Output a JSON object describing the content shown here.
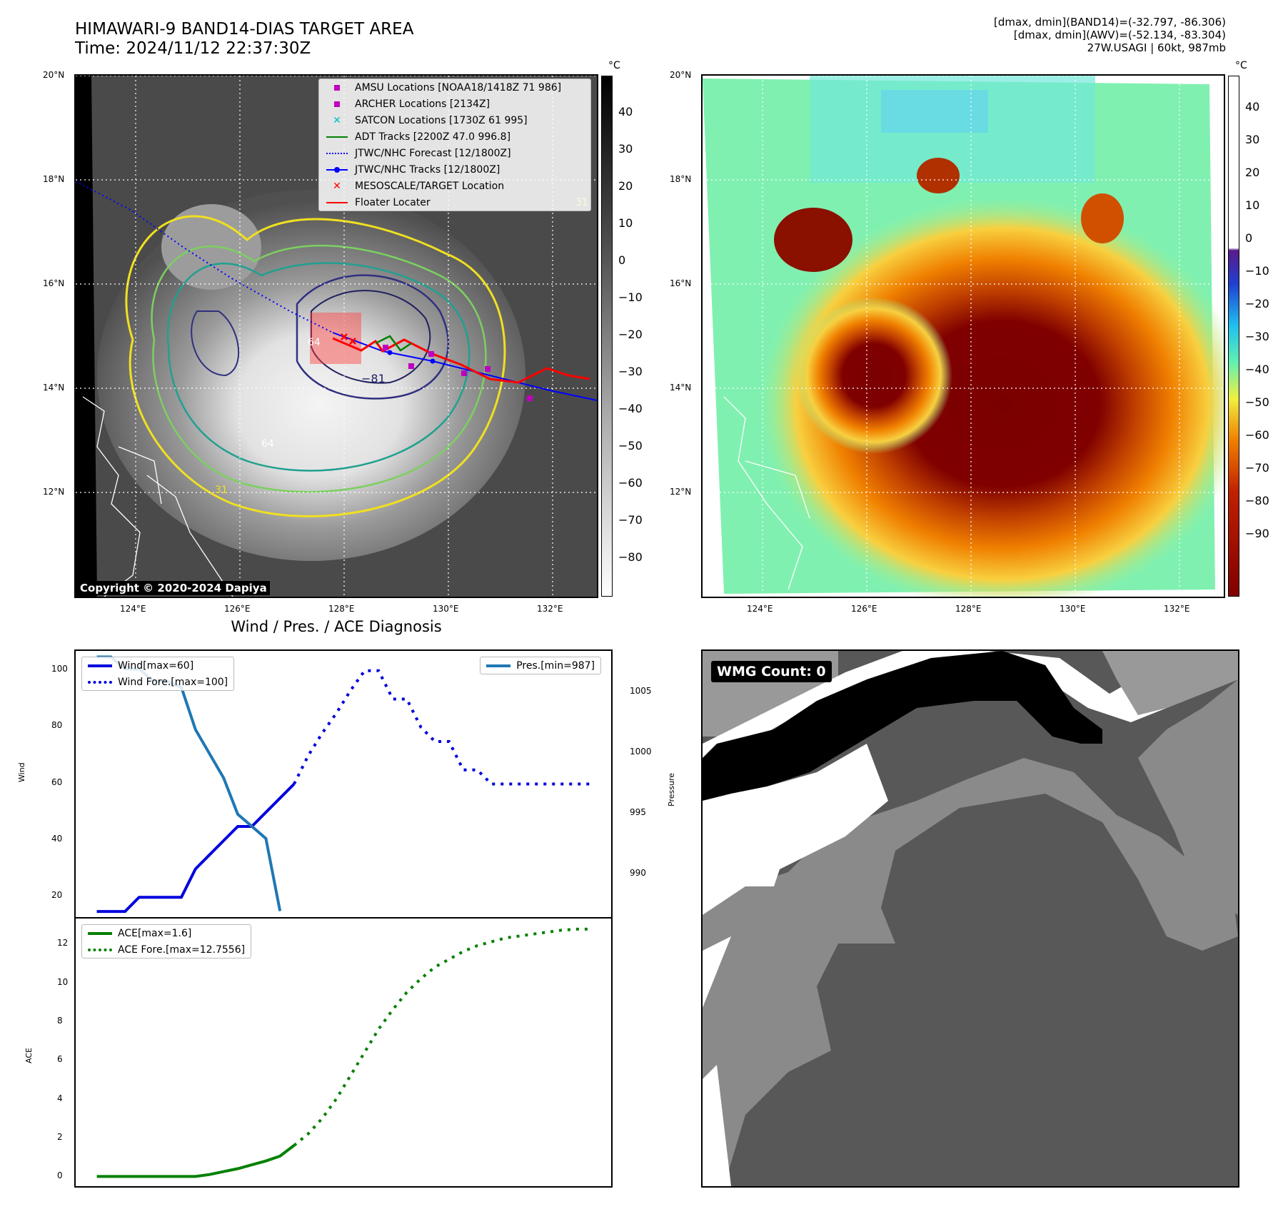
{
  "header": {
    "title_line1": "HIMAWARI-9 BAND14-DIAS TARGET AREA",
    "title_line2": "Time: 2024/11/12 22:37:30Z",
    "meta_line1": "[dmax, dmin](BAND14)=(-32.797, -86.306)",
    "meta_line2": "[dmax, dmin](AWV)=(-52.134, -83.304)",
    "meta_line3": "27W.USAGI | 60kt, 987mb"
  },
  "ir_map": {
    "lat_labels": [
      "20°N",
      "18°N",
      "16°N",
      "14°N",
      "12°N"
    ],
    "lon_labels": [
      "124°E",
      "126°E",
      "128°E",
      "130°E",
      "132°E"
    ],
    "colorbar_unit": "°C",
    "colorbar_ticks": [
      "40",
      "30",
      "20",
      "10",
      "0",
      "−10",
      "−20",
      "−30",
      "−40",
      "−50",
      "−60",
      "−70",
      "−80"
    ],
    "copyright": "Copyright © 2020-2024 Dapiya",
    "contour_labels": [
      "64",
      "81",
      "−81",
      "64",
      "31",
      "31"
    ],
    "legend": [
      {
        "label": "AMSU Locations [NOAA18/1418Z 71 986]",
        "symbol": "square",
        "color": "#c000c0"
      },
      {
        "label": "ARCHER Locations [2134Z]",
        "symbol": "square",
        "color": "#c000c0"
      },
      {
        "label": "SATCON Locations [1730Z 61 995]",
        "symbol": "x",
        "color": "#00c0c0"
      },
      {
        "label": "ADT Tracks [2200Z 47.0 996.8]",
        "symbol": "line",
        "color": "#008000"
      },
      {
        "label": "JTWC/NHC Forecast [12/1800Z]",
        "symbol": "dotted",
        "color": "#0000ff"
      },
      {
        "label": "JTWC/NHC Tracks [12/1800Z]",
        "symbol": "line-dot",
        "color": "#0000ff"
      },
      {
        "label": "MESOSCALE/TARGET Location",
        "symbol": "x",
        "color": "#ff0000"
      },
      {
        "label": "Floater Locater",
        "symbol": "line",
        "color": "#ff0000"
      }
    ]
  },
  "awv_map": {
    "lat_labels": [
      "20°N",
      "18°N",
      "16°N",
      "14°N",
      "12°N"
    ],
    "lon_labels": [
      "124°E",
      "126°E",
      "128°E",
      "130°E",
      "132°E"
    ],
    "colorbar_unit": "°C",
    "colorbar_ticks": [
      "40",
      "30",
      "20",
      "10",
      "0",
      "−10",
      "−20",
      "−30",
      "−40",
      "−50",
      "−60",
      "−70",
      "−80",
      "−90"
    ]
  },
  "diag_title": "Wind / Pres. / ACE Diagnosis",
  "wmg": {
    "label": "WMG Count: 0"
  },
  "chart_data": [
    {
      "type": "line",
      "title": "Wind / Pres. / ACE Diagnosis",
      "ylabel": "Wind",
      "ylabel2": "Pressure",
      "ylim": [
        13,
        107
      ],
      "ylim2": [
        986.5,
        1008.5
      ],
      "yticks": [
        20,
        40,
        60,
        80,
        100
      ],
      "yticks2": [
        990,
        995,
        1000,
        1005
      ],
      "x": [
        0,
        1,
        2,
        3,
        4,
        5,
        6,
        7,
        8,
        9,
        10,
        11,
        12,
        13,
        14,
        15,
        16,
        17,
        18,
        19,
        20,
        21,
        22,
        23,
        24,
        25,
        26,
        27,
        28,
        29,
        30,
        31,
        32,
        33,
        34,
        35
      ],
      "series": [
        {
          "name": "Wind[max=60]",
          "color": "#0000dd",
          "style": "solid",
          "axis": "left",
          "x": [
            0,
            1,
            2,
            3,
            4,
            5,
            6,
            7,
            8,
            9,
            10,
            11,
            12,
            13,
            14
          ],
          "values": [
            15,
            15,
            15,
            20,
            20,
            20,
            20,
            30,
            35,
            40,
            45,
            45,
            50,
            55,
            60
          ]
        },
        {
          "name": "Wind Fore.[max=100]",
          "color": "#0000dd",
          "style": "dotted",
          "axis": "left",
          "x": [
            14,
            15,
            16,
            17,
            18,
            19,
            20,
            21,
            22,
            23,
            24,
            25,
            26,
            27,
            28,
            29,
            30,
            31,
            32,
            33,
            34,
            35
          ],
          "values": [
            60,
            70,
            78,
            85,
            93,
            100,
            100,
            90,
            90,
            80,
            75,
            75,
            65,
            65,
            60,
            60,
            60,
            60,
            60,
            60,
            60,
            60
          ]
        },
        {
          "name": "Pres.[min=987]",
          "color": "#1f77b4",
          "style": "solid",
          "axis": "right",
          "x": [
            0,
            1,
            2,
            3,
            4,
            5,
            6,
            7,
            8,
            9,
            10,
            11,
            12,
            13
          ],
          "values": [
            1008,
            1008,
            1007,
            1007,
            1006,
            1006,
            1005.5,
            1002,
            1000,
            998,
            995,
            994,
            993,
            987
          ]
        }
      ]
    },
    {
      "type": "line",
      "ylabel": "ACE",
      "ylim": [
        -0.5,
        13.3
      ],
      "yticks": [
        0,
        2,
        4,
        6,
        8,
        10,
        12
      ],
      "series": [
        {
          "name": "ACE[max=1.6]",
          "color": "#008000",
          "style": "solid",
          "x": [
            0,
            1,
            2,
            3,
            4,
            5,
            6,
            7,
            8,
            9,
            10,
            11,
            12,
            13,
            14
          ],
          "values": [
            0,
            0,
            0,
            0,
            0,
            0,
            0,
            0,
            0.1,
            0.25,
            0.4,
            0.6,
            0.8,
            1.05,
            1.6
          ]
        },
        {
          "name": "ACE Fore.[max=12.7556]",
          "color": "#008000",
          "style": "dotted",
          "x": [
            14,
            15,
            16,
            17,
            18,
            19,
            20,
            21,
            22,
            23,
            24,
            25,
            26,
            27,
            28,
            29,
            30,
            31,
            32,
            33,
            34,
            35
          ],
          "values": [
            1.6,
            2.2,
            3.0,
            4.0,
            5.2,
            6.4,
            7.6,
            8.6,
            9.5,
            10.2,
            10.8,
            11.2,
            11.6,
            11.9,
            12.1,
            12.3,
            12.4,
            12.5,
            12.6,
            12.7,
            12.75,
            12.7556
          ]
        }
      ]
    }
  ]
}
